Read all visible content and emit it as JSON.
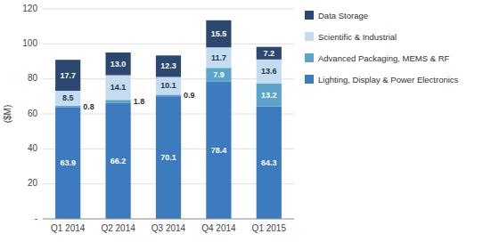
{
  "chart_data": {
    "type": "bar",
    "stacked": true,
    "data_labels": true,
    "grid": true,
    "legend": "right",
    "ylabel": "($M)",
    "categories": [
      "Q1 2014",
      "Q2 2014",
      "Q3 2014",
      "Q4 2014",
      "Q1 2015"
    ],
    "series": [
      {
        "name": "Lighting, Display & Power Electronics",
        "color": "#3B7BBE",
        "values": [
          63.9,
          66.2,
          70.1,
          78.4,
          64.3
        ]
      },
      {
        "name": "Advanced Packaging, MEMS & RF",
        "color": "#5BA3C9",
        "values": [
          0.8,
          1.8,
          0.9,
          7.9,
          13.2
        ]
      },
      {
        "name": "Scientific & Industrial",
        "color": "#C5DCF0",
        "values": [
          8.5,
          14.1,
          10.1,
          11.7,
          13.6
        ]
      },
      {
        "name": "Data Storage",
        "color": "#2C4770",
        "values": [
          17.7,
          13.0,
          12.3,
          15.5,
          7.2
        ],
        "value_labels": [
          "17.7",
          "13.0",
          "12.3",
          "15.5",
          "7.2"
        ]
      }
    ],
    "ylim": [
      0,
      120
    ],
    "yticks": [
      {
        "value": 0,
        "label": "-"
      },
      20,
      40,
      60,
      80,
      100,
      120
    ]
  }
}
